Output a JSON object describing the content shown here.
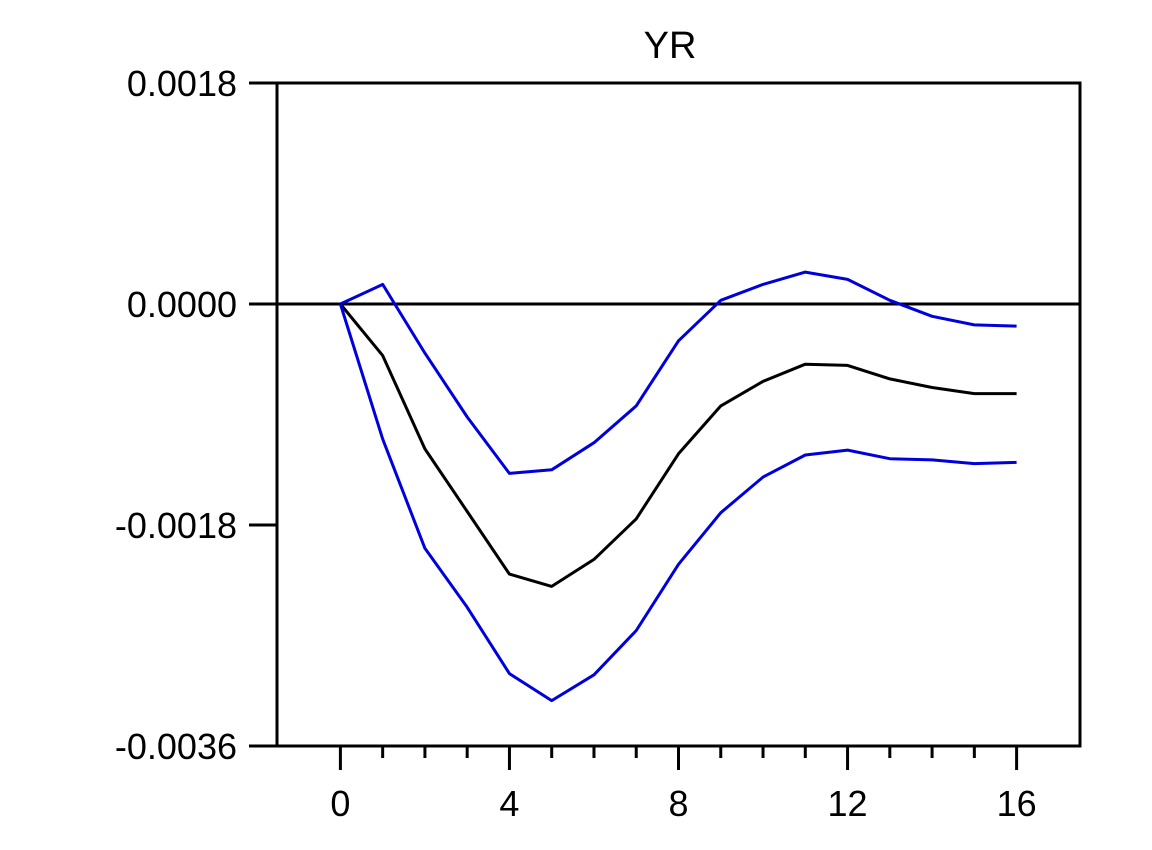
{
  "chart_data": {
    "type": "line",
    "title": "YR",
    "xlabel": "",
    "ylabel": "",
    "xlim": [
      -1.5,
      17.5
    ],
    "ylim": [
      -0.0036,
      0.0018
    ],
    "x_ticks": [
      0,
      4,
      8,
      12,
      16
    ],
    "x_tick_labels": [
      "0",
      "4",
      "8",
      "12",
      "16"
    ],
    "y_ticks": [
      0.0018,
      0.0,
      -0.0018,
      -0.0036
    ],
    "y_tick_labels": [
      "0.0018",
      "0.0000",
      "-0.0018",
      "-0.0036"
    ],
    "zero_line": true,
    "grid": false,
    "legend": "none",
    "x": [
      0,
      1,
      2,
      3,
      4,
      5,
      6,
      7,
      8,
      9,
      10,
      11,
      12,
      13,
      14,
      15,
      16
    ],
    "series": [
      {
        "color": "#0000dd",
        "values": [
          0.0,
          0.00016,
          -0.0004,
          -0.00092,
          -0.00138,
          -0.00135,
          -0.00113,
          -0.00083,
          -0.0003,
          3e-05,
          0.00016,
          0.00026,
          0.0002,
          3e-05,
          -0.0001,
          -0.00017,
          -0.00018
        ]
      },
      {
        "color": "#000000",
        "values": [
          0.0,
          -0.00042,
          -0.00118,
          -0.00169,
          -0.0022,
          -0.0023,
          -0.00208,
          -0.00175,
          -0.00122,
          -0.00083,
          -0.00063,
          -0.00049,
          -0.0005,
          -0.00061,
          -0.00068,
          -0.00073,
          -0.00073
        ]
      },
      {
        "color": "#0000dd",
        "values": [
          0.0,
          -0.0011,
          -0.00199,
          -0.00247,
          -0.00301,
          -0.00323,
          -0.00302,
          -0.00266,
          -0.00212,
          -0.0017,
          -0.00141,
          -0.00123,
          -0.00119,
          -0.00126,
          -0.00127,
          -0.0013,
          -0.00129
        ]
      }
    ]
  }
}
